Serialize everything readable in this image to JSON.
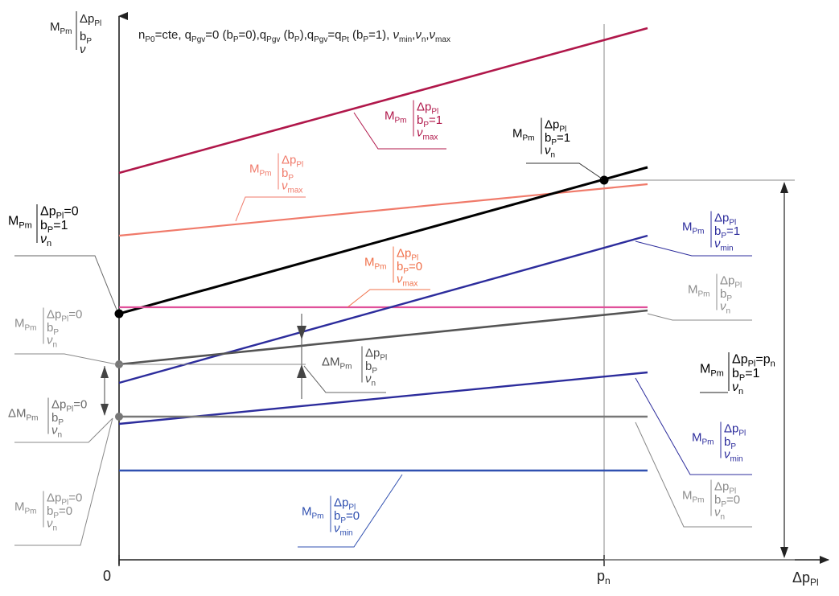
{
  "header": "n_P0=cte, q_Pgv=0 (b_P=0), q_Pgv (b_P), q_Pgv=q_Pt (b_P=1), ν_min, ν_n, ν_max",
  "axis": {
    "origin": "0",
    "x_tick": "p_n",
    "x_label": "Δp_Pl",
    "y_label": "M_Pm | Δp_Pl ; b_P ; ν"
  },
  "colors": {
    "darkred": "#b0174a",
    "salmon": "#f07a6a",
    "orange": "#f0704a",
    "pink": "#e0509a",
    "black": "#000000",
    "navy": "#2c2c9c",
    "blue": "#3050b0",
    "darkgray": "#505050",
    "gray": "#6c6c6c",
    "lightgray": "#8c8c8c",
    "gridgray": "#9a9a9a"
  },
  "labels": {
    "pm": "P",
    "mpm": "M",
    "dmpm": "ΔM",
    "dp": "Δp",
    "pl": "Pl",
    "b": "b",
    "nu": "ν",
    "n": "n",
    "min": "min",
    "max": "max",
    "eq0": "=0",
    "eq1": "=1",
    "eqpn": "=p",
    "x": "x"
  },
  "header_parts": {
    "n": "n",
    "p0": "P0",
    "rest1": "=cte, q",
    "pgv": "Pgv",
    "rest2": "=0 (b",
    "p": "P",
    "rest3": "=0),q",
    "rest4": " (b",
    "rest5": "),q",
    "rest6": "=q",
    "pt": "Pt",
    "rest7": " (b",
    "rest8": "=1), ",
    "nu": "ν",
    "min": "min",
    "comma": ",",
    "nn": "n",
    "max": "max"
  }
}
